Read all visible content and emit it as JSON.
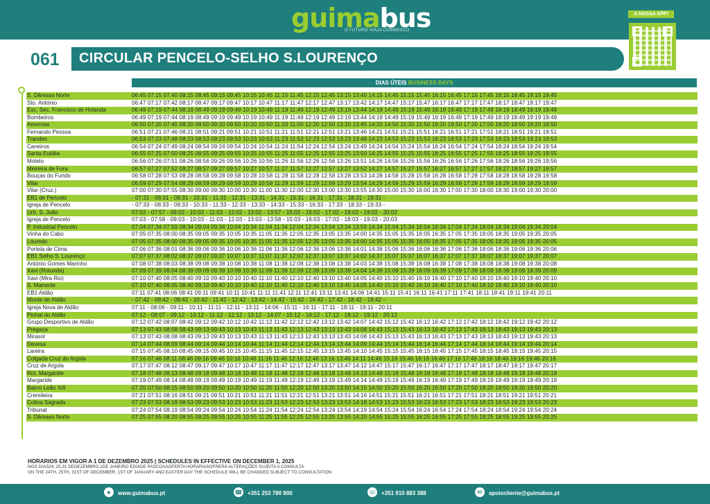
{
  "brand": {
    "logo_green": "guima",
    "logo_white": "bus",
    "tagline": "O FUTURO VIAJA CONNOSCO",
    "app_label": "A NOSSA APP!"
  },
  "route": {
    "number": "061",
    "name": "CIRCULAR PENCELO-SELHO S.LOURENÇO"
  },
  "schedule": {
    "days_pt": "DIAS ÚTEIS",
    "days_en": "BUSINESS DAYS"
  },
  "stops": [
    {
      "name": "S. Dâmaso Norte",
      "times": "06:45 07:15 07:40 08:15 08:45 09:15 09:45 10:15 10:45 11:15 11:45 12:15 12:45 13:15 13:40 14:15 14:45 15:15 15:45 16:15 16:45 17:15 17:45 18:15 18:45 19:15 19:45"
    },
    {
      "name": "Sto. António",
      "times": "06:47 07:17 07:42 08:17 08:47 09:17 09:47 10:17 10:47 11:17 11:47 12:17 12:47 13:17 13:42 14:17 14:47 15:17 15:47 16:17 16:47 17:17 17:47 18:17 18:47 19:17 19:47"
    },
    {
      "name": "Esc. Sec. Francisco de Holanda",
      "times": "06:49 07:19 07:44 08:19 08:49 09:19 09:49 10:19 10:49 11:19 11:49 12:19 12:49 13:19 13:44 14:19 14:49 15:19 15:49 16:19 16:49 17:19 17:49 18:19 18:49 19:19 19:49"
    },
    {
      "name": "Bombeiros",
      "times": "06:49 07:19 07:44 08:19 08:49 09:19 09:49 10:19 10:49 11:19 11:49 12:19 12:49 13:19 13:44 14:19 14:49 15:19 15:49 16:19 16:49 17:19 17:49 18:19 18:49 19:19 19:49"
    },
    {
      "name": "Amorosa",
      "times": "06:50 07:20 07:45 08:20 08:50 09:20 09:50 10:20 10:50 11:20 11:50 12:20 12:50 13:20 13:45 14:20 14:50 15:20 15:50 16:20 16:50 17:20 17:50 18:20 18:50 19:20 19:50"
    },
    {
      "name": "Fernando Pessoa",
      "times": "06:51 07:21 07:46 08:21 08:51 09:21 09:51 10:21 10:51 11:21 11:51 12:21 12:51 13:21 13:46 14:21 14:51 15:21 15:51 16:21 16:51 17:21 17:51 18:21 18:51 19:21 19:51"
    },
    {
      "name": "Trandes",
      "times": "06:53 07:23 07:48 08:23 08:53 09:23 09:53 10:23 10:53 11:23 11:53 12:23 12:53 13:23 13:48 14:23 14:53 15:23 15:53 16:23 16:53 17:23 17:53 18:23 18:53 19:23 19:53"
    },
    {
      "name": "Caneiros",
      "times": "06:54 07:24 07:49 08:24 08:54 09:24 09:54 10:24 10:54 11:24 11:54 12:24 12:54 13:24 13:49 14:24 14:54 15:24 15:54 16:24 16:54 17:24 17:54 18:24 18:54 19:24 19:54"
    },
    {
      "name": "Santa Eulália",
      "times": "06:55 07:25 07:50 08:25 08:55 09:25 09:55 10:25 10:55 11:25 11:55 12:25 12:55 13:25 13:50 14:25 14:55 15:25 15:55 16:25 16:55 17:25 17:55 18:25 18:55 19:25 19:55"
    },
    {
      "name": "Motelo",
      "times": "06:56 07:26 07:51 08:26 08:56 09:26 09:56 10:26 10:56 11:26 11:56 12:26 12:56 13:26 13:51 14:26 14:56 15:26 15:56 16:26 16:56 17:26 17:56 18:26 18:56 19:26 19:56"
    },
    {
      "name": "Meireira de Fora",
      "times": "06:57 07:27 07:52 08:27 08:57 09:27 09:57 10:27 10:57 11:27 11:57 12:27 12:57 13:27 13:52 14:27 14:57 15:27 15:57 16:27 16:57 17:27 17:57 18:27 18:57 19:27 19:57"
    },
    {
      "name": "Bouças do Fundo",
      "times": "06:58 07:28 07:53 08:28 08:58 09:28 09:58 10:28 10:58 11:28 11:58 12:28 12:58 13:28 13:53 14:28 14:58 15:28 15:58 16:28 16:58 17:28 17:58 18:28 18:58 19:28 19:58"
    },
    {
      "name": "Vilar",
      "times": "06:59 07:29 07:54 08:29 08:59 09:29 09:59 10:29 10:59 11:29 11:59 12:29 12:59 13:29 13:54 14:29 14:59 15:29 15:59 16:29 16:59 17:29 17:59 18:29 18:59 19:29 19:59"
    },
    {
      "name": "Vilar (Cruz.)",
      "times": "07:00 07:30 07:55 08:30 09:00 09:30 10:00 10:30 11:00 11:30 12:00 12:30 13:00 13:30 13:55 14:30 15:00 15:30 16:00 16:30 17:00 17:30 18:00 18:30 19:00 19:30 20:00"
    },
    {
      "name": "EB1 de Pencelo",
      "times": "-     07:31 -     08:31 -     09:31 -     10:31 -     11:31 -     12:31 -     13:31 -     14:31 -     15:31 -     16:31 -     17:31 -     18:31 -     19:31 -"
    },
    {
      "name": "Igreja de Pencelo",
      "times": "-     07:33 -     08:33 -     09:33 -     10:33 -     11:33 -     12:33 -     13:33 -     14:33 -     15:33 -     16:33 -     17:33 -     18:33 -     19:33 -"
    },
    {
      "name": "Urb. S. João",
      "times": "07:02 -     07:57 -     09:02 -     10:02 -     11:02 -     12:02 -     13:02 -     13:57 -     15:02 -     16:02 -     17:02 -     18:02 -     19:02 -     20:02"
    },
    {
      "name": "Igreja de Pencelo",
      "times": "07:03 -     07:58 -     09:03 -     10:03 -     11:03 -     12:03 -     13:03 -     13:58 -     15:03 -     16:03 -     17:03 -     18:03 -     19:03 -     20:03"
    },
    {
      "name": "P. Industrial Pencelo",
      "times": "07:04 07:34 07:59 08:34 09:04 09:34 10:04 10:34 11:04 11:34 12:04 12:34 13:04 13:34 13:59 14:34 15:04 15:34 16:04 16:34 17:04 17:34 18:04 18:34 19:04 19:34 20:04"
    },
    {
      "name": "Vinha do Cabo",
      "times": "07:05 07:35 08:00 08:35 09:05 09:35 10:05 10:35 11:05 11:35 12:05 12:35 13:05 13:35 14:00 14:35 15:05 15:35 16:05 16:35 17:05 17:35 18:05 18:35 19:05 19:35 20:05"
    },
    {
      "name": "Louredo",
      "times": "07:05 07:35 08:00 08:35 09:05 09:35 10:05 10:35 11:05 11:35 12:05 12:35 13:05 13:35 14:00 14:35 15:05 15:35 16:05 16:35 17:05 17:35 18:05 18:35 19:05 19:35 20:05"
    },
    {
      "name": "Portela de Cima",
      "times": "07:06 07:36 08:01 08:36 09:06 09:36 10:06 10:36 11:06 11:36 12:06 12:36 13:06 13:36 14:01 14:36 15:06 15:36 16:06 16:36 17:06 17:36 18:06 18:36 19:06 19:36 20:06"
    },
    {
      "name": "EB1 Selho S. Lourenço",
      "times": "07:07 07:37 08:02 08:37 09:07 09:37 10:07 10:37 11:07 11:37 12:07 12:37 13:07 13:37 14:02 14:37 15:07 15:37 16:07 16:37 17:07 17:37 18:07 18:37 19:07 19:37 20:07"
    },
    {
      "name": "António Gomes Marinho",
      "times": "07:08 07:38 08:03 08:38 09:08 09:38 10:08 10:38 11:08 11:38 12:08 12:38 13:08 13:38 14:03 14:38 15:08 15:38 16:08 16:38 17:08 17:38 18:08 18:38 19:08 19:38 20:08"
    },
    {
      "name": "Xavi (Rotunda)",
      "times": "07:09 07:39 08:04 08:39 09:09 09:39 10:09 10:39 11:09 11:39 12:09 12:39 13:09 13:39 14:04 14:39 15:09 15:39 16:09 16:39 17:09 17:39 18:09 18:39 19:09 19:39 20:09"
    },
    {
      "name": "Xavi (Mira Rio)",
      "times": "07:10 07:40 08:05 08:40 09:10 09:40 10:10 10:40 11:10 11:40 12:10 12:40 13:10 13:40 14:05 14:40 15:10 15:40 16:10 16:40 17:10 17:40 18:10 18:40 19:10 19:40 20:10"
    },
    {
      "name": "S. Mamede",
      "times": "07:10 07:40 08:05 08:40 09:10 09:40 10:10 10:40 11:10 11:40 12:10 12:40 13:10 13:40 14:05 14:40 15:10 15:40 16:10 16:40 17:10 17:40 18:10 18:40 19:10 19:40 20:10"
    },
    {
      "name": "EB1 Aldão",
      "times": "07:11 07:41 08:06 08:41 09:11 09:41 10:11 10:41 11:11 11:41 12:11 12:41 13:11 13:41 14:06 14:41 15:11 15:41 16:11 16:41 17:11 17:41 18:11 18:41 19:11 19:41 20:11"
    },
    {
      "name": "Monte de Aldão",
      "times": "-     07:42 -     08:42 -     09:42 -     10:42 -     11:42 -     12:42 -     13:42 -     14:42 -     15:42 -     16:42 -     17:42 -     18:42 -     19:42 -"
    },
    {
      "name": "Igreja Nova de Aldão",
      "times": "07:11 -     08:06 -     09:11 -     10:11 -     11:11 -     12:11 -     13:11 -     14:06 -     15:11 -     16:11 -     17:11 -     18:11 -     19:11 -     20:11"
    },
    {
      "name": "Pinhal do Aldão",
      "times": "07:12 -     08:07 -     09:12 -     10:12 -     11:12 -     12:12 -     13:12 -     14:07 -     15:12 -     16:12 -     17:12 -     18:12 -     19:12 -     20:12"
    },
    {
      "name": "Grupo Desportivo de Aldão",
      "times": "07:12 07:42 08:07 08:42 09:12 09:42 10:12 10:42 11:12 11:42 12:12 12:42 13:12 13:42 14:07 14:42 15:12 15:42 16:12 16:42 17:12 17:42 18:12 18:42 19:12 19:42 20:12"
    },
    {
      "name": "Pregaça",
      "times": "07:13 07:43 08:08 08:43 09:13 09:43 10:13 10:43 11:13 11:43 12:13 12:43 13:13 13:43 14:08 14:43 15:13 15:43 16:13 16:43 17:13 17:43 18:13 18:43 19:13 19:43 20:13"
    },
    {
      "name": "Mirasol",
      "times": "07:13 07:43 08:08 08:43 09:13 09:43 10:13 10:43 11:13 11:43 12:13 12:43 13:13 13:43 14:08 14:43 15:13 15:43 16:13 16:43 17:13 17:43 18:13 18:43 19:13 19:43 20:13"
    },
    {
      "name": "Devesa",
      "times": "07:14 07:44 08:09 08:44 09:14 09:44 10:14 10:44 11:14 11:44 12:14 12:44 13:14 13:44 14:09 14:44 15:14 15:44 16:14 16:44 17:14 17:44 18:14 18:44 19:14 19:44 20:14"
    },
    {
      "name": "Lareira",
      "times": "07:15 07:45 08:10 08:45 09:15 09:45 10:15 10:45 11:15 11:45 12:15 12:45 13:15 13:45 14:10 14:45 15:15 15:45 16:15 16:45 17:15 17:45 18:15 18:45 19:15 19:45 20:15"
    },
    {
      "name": "Colgada Cruz do Argola",
      "times": "07:16 07:46 08:11 08:46 09:16 09:46 10:16 10:46 11:16 11:46 12:16 12:46 13:16 13:46 14:11 14:46 15:16 15:46 16:16 16:46 17:16 17:46 18:16 18:46 19:16 19:46 20:16"
    },
    {
      "name": "Cruz de Argola",
      "times": "07:17 07:47 08:12 08:47 09:17 09:47 10:17 10:47 11:17 11:47 12:17 12:47 13:17 13:47 14:12 14:47 15:17 15:47 16:17 16:47 17:17 17:47 18:17 18:47 19:17 19:47 20:17"
    },
    {
      "name": "Rot. Margaride",
      "times": "07:18 07:48 08:13 08:48 09:18 09:48 10:18 10:48 11:18 11:48 12:18 12:48 13:18 13:48 14:13 14:48 15:18 15:48 16:18 16:48 17:18 17:48 18:18 18:48 19:18 19:48 20:18"
    },
    {
      "name": "Margaride",
      "times": "07:19 07:49 08:14 08:49 09:19 09:49 10:19 10:49 11:19 11:49 12:19 12:49 13:19 13:49 14:14 14:49 15:19 15:49 16:19 16:49 17:19 17:49 18:19 18:49 19:19 19:49 20:19"
    },
    {
      "name": "Bairro Leão XIII",
      "times": "07:20 07:50 08:15 08:50 09:20 09:50 10:20 10:50 11:20 11:50 12:20 12:50 13:20 13:50 14:15 14:50 15:20 15:50 16:20 16:50 17:20 17:50 18:20 18:50 19:20 19:50 20:20"
    },
    {
      "name": "Cremileira",
      "times": "07:21 07:51 08:16 08:51 09:21 09:51 10:21 10:51 11:21 11:51 12:21 12:51 13:21 13:51 14:16 14:51 15:21 15:51 16:21 16:51 17:21 17:51 18:21 18:51 19:21 19:51 20:21"
    },
    {
      "name": "Colina Sagrada",
      "times": "07:23 07:53 08:18 08:53 09:23 09:53 10:23 10:53 11:23 11:53 12:23 12:53 13:23 13:53 14:18 14:53 15:23 15:53 16:23 16:53 17:23 17:53 18:23 18:53 19:23 19:53 20:23"
    },
    {
      "name": "Tribunal",
      "times": "07:24 07:54 08:19 08:54 09:24 09:54 10:24 10:54 11:24 11:54 12:24 12:54 13:24 13:54 14:19 14:54 15:24 15:54 16:24 16:54 17:24 17:54 18:24 18:54 19:24 19:54 20:24"
    },
    {
      "name": "S. Dâmaso Norte",
      "times": "07:25 07:55 08:20 08:55 09:25 09:55 10:25 10:55 11:25 11:55 12:25 12:55 13:25 13:55 14:20 14:55 15:25 15:55 16:25 16:55 17:25 17:55 18:25 18:55 19:25 19:55 20:25"
    }
  ],
  "notes": {
    "line1": "HORARIOS EM VIGOR A 1 DE DEZEMBRO 2025 | SCHEDULES IN EFFECTIVE ON DECEMBER 1, 2025",
    "line2": "NOS DIAS24, 25,31 DEDEZEMBRO,1DE JANEIRO EDIADE PASCOAAOFERTA HORARIASOFRERÁ ALTERAÇÕES SUJEITA A CONSULTA",
    "line3": "ON THE 24TH, 25TH, 31ST OF DECEMBER, 1ST OF JANUARY AND EASTER DAY THE SCHEDULE WILL BE CHANGED SUBJECT TO CONSULTATION"
  },
  "footer": {
    "website": "www.guimabus.pt",
    "phone": "+351 253 780 800",
    "whatsapp": "+351 910 883 388",
    "email": "apoiocliente@guimabus.pt"
  },
  "colors": {
    "teal": "#1f7f7d",
    "green": "#9acd32"
  }
}
